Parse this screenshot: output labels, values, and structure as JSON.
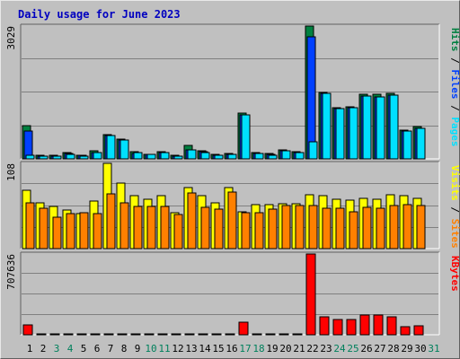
{
  "chart_data": {
    "type": "bar",
    "title": "Daily usage for June 2023",
    "categories": [
      "1",
      "2",
      "3",
      "4",
      "5",
      "6",
      "7",
      "8",
      "9",
      "10",
      "11",
      "12",
      "13",
      "14",
      "15",
      "16",
      "17",
      "18",
      "19",
      "20",
      "21",
      "22",
      "23",
      "24",
      "25",
      "26",
      "27",
      "28",
      "29",
      "30",
      "31"
    ],
    "weekend_days": [
      3,
      4,
      10,
      11,
      17,
      18,
      24,
      25,
      31
    ],
    "panels": [
      {
        "max_label": "3029",
        "max": 3029,
        "legend": [
          "Pages",
          "Files",
          "Hits"
        ],
        "series": [
          {
            "name": "Hits",
            "color": "#008040",
            "values": [
              750,
              80,
              80,
              140,
              90,
              190,
              560,
              460,
              160,
              110,
              160,
              90,
              310,
              190,
              100,
              120,
              1040,
              140,
              120,
              210,
              160,
              3029,
              1520,
              1170,
              1180,
              1470,
              1470,
              1500,
              660,
              740
            ]
          },
          {
            "name": "Files",
            "color": "#0040ff",
            "values": [
              630,
              70,
              70,
              120,
              80,
              150,
              540,
              430,
              130,
              100,
              140,
              70,
              200,
              160,
              90,
              100,
              1010,
              120,
              100,
              190,
              150,
              2780,
              1490,
              1140,
              1160,
              1440,
              1420,
              1460,
              640,
              700
            ]
          },
          {
            "name": "Pages",
            "color": "#00e0ff",
            "values": [
              90,
              60,
              60,
              110,
              70,
              150,
              540,
              430,
              140,
              100,
              140,
              70,
              200,
              150,
              90,
              110,
              1010,
              120,
              90,
              190,
              150,
              380,
              1490,
              1140,
              1160,
              1440,
              1420,
              1460,
              640,
              700
            ]
          }
        ]
      },
      {
        "max_label": "108",
        "max": 108,
        "legend": [
          "Sites",
          "Visits"
        ],
        "series": [
          {
            "name": "Visits",
            "color": "#ffff00",
            "values": [
              74,
              58,
              53,
              49,
              44,
              60,
              108,
              83,
              67,
              63,
              67,
              45,
              77,
              67,
              58,
              77,
              47,
              56,
              56,
              57,
              57,
              68,
              67,
              62,
              61,
              64,
              62,
              68,
              67,
              64
            ]
          },
          {
            "name": "Sites",
            "color": "#ff8000",
            "values": [
              58,
              51,
              40,
              44,
              46,
              44,
              69,
              58,
              53,
              53,
              53,
              43,
              71,
              52,
              50,
              72,
              46,
              45,
              50,
              55,
              55,
              54,
              51,
              51,
              47,
              52,
              51,
              55,
              56,
              55
            ]
          }
        ]
      },
      {
        "max_label": "707636",
        "max": 707636,
        "legend": [
          "KBytes"
        ],
        "series": [
          {
            "name": "KBytes",
            "color": "#ff0000",
            "values": [
              90000,
              5000,
              5000,
              5000,
              5000,
              5000,
              5000,
              5000,
              5000,
              5000,
              5000,
              5000,
              5000,
              5000,
              5000,
              5000,
              110000,
              5000,
              5000,
              5000,
              5000,
              707636,
              160000,
              130000,
              130000,
              170000,
              170000,
              160000,
              70000,
              80000
            ]
          }
        ]
      }
    ],
    "legend_colors": {
      "Pages": "#00e0ff",
      "Files": "#0040ff",
      "Hits": "#008040",
      "Sites": "#ff8000",
      "Visits": "#ffff00",
      "KBytes": "#ff0000"
    }
  }
}
